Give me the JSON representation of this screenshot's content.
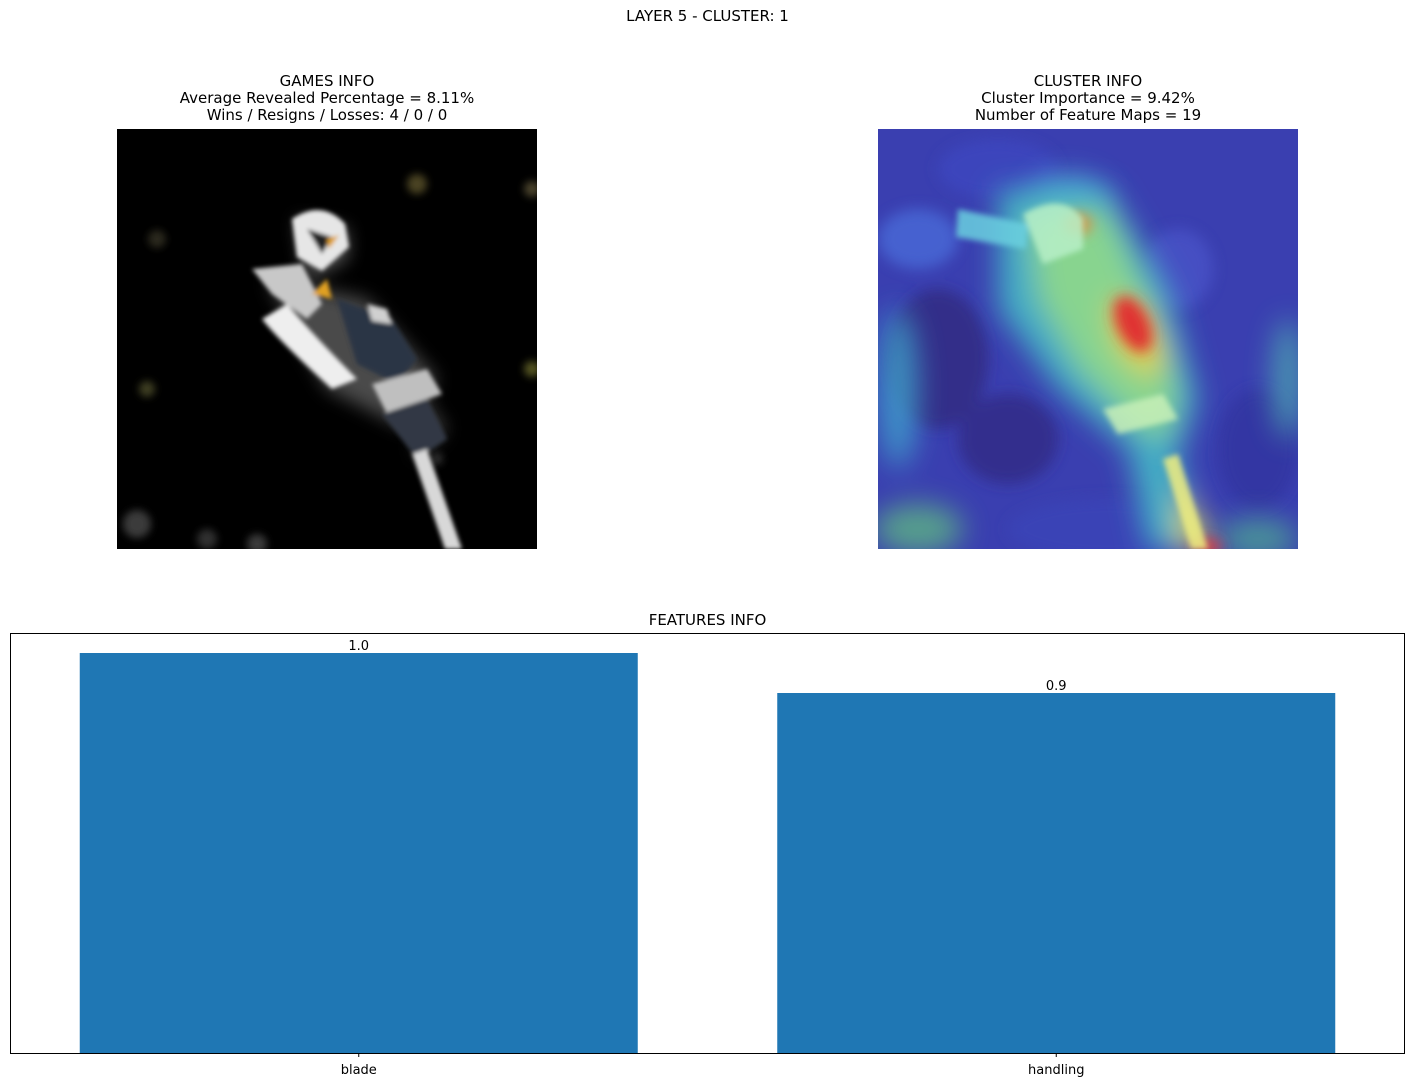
{
  "figure": {
    "suptitle": "LAYER 5 - CLUSTER: 1"
  },
  "games_info": {
    "title": "GAMES INFO",
    "line1": "Average Revealed Percentage = 8.11%",
    "line2": "Wins / Resigns / Losses: 4 / 0 / 0",
    "image": "masked-chainsaw-image"
  },
  "cluster_info": {
    "title": "CLUSTER INFO",
    "line1": "Cluster Importance = 9.42%",
    "line2": "Number of Feature Maps = 19",
    "image": "heatmap-overlay-chainsaw-image"
  },
  "chart_data": {
    "type": "bar",
    "title": "FEATURES INFO",
    "categories": [
      "blade",
      "handling"
    ],
    "values": [
      1.0,
      0.9
    ],
    "value_labels": [
      "1.0",
      "0.9"
    ],
    "xlabel": "",
    "ylabel": "",
    "ylim": [
      0,
      1.05
    ],
    "y_ticks_visible": false,
    "grid": false,
    "bar_color": "#1f77b4"
  }
}
